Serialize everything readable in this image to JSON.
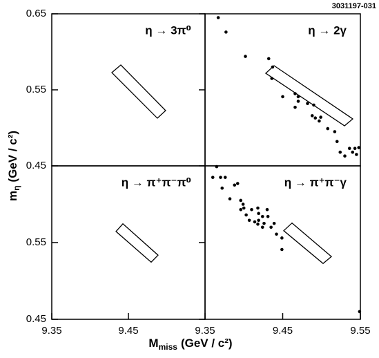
{
  "figure": {
    "id": "3031197-031",
    "xlabel": {
      "base": "M",
      "sub": "miss",
      "unit": "(GeV / c²)"
    },
    "ylabel": {
      "base": "m",
      "sub": "η",
      "unit": "(GeV / c²)"
    }
  },
  "chart_data": [
    {
      "type": "scatter",
      "label": "η → 3π⁰",
      "xlim": [
        9.35,
        9.55
      ],
      "ylim": [
        0.45,
        0.65
      ],
      "yticks": [
        0.65,
        0.55,
        0.45
      ],
      "box": [
        [
          9.4284,
          0.5727
        ],
        [
          9.4401,
          0.5827
        ],
        [
          9.4986,
          0.5227
        ],
        [
          9.4878,
          0.5127
        ]
      ],
      "x": [],
      "values": [],
      "color": "#000000"
    },
    {
      "type": "scatter",
      "label": "η → 2γ",
      "xlim": [
        9.35,
        9.55
      ],
      "ylim": [
        0.45,
        0.65
      ],
      "box": [
        [
          9.4282,
          0.5718
        ],
        [
          9.4389,
          0.5818
        ],
        [
          9.5402,
          0.5118
        ],
        [
          9.5296,
          0.5027
        ]
      ],
      "x": [
        9.367,
        9.377,
        9.402,
        9.432,
        9.437,
        9.436,
        9.45,
        9.466,
        9.47,
        9.466,
        9.47,
        9.482,
        9.49,
        9.488,
        9.492,
        9.497,
        9.499,
        9.508,
        9.517,
        9.52,
        9.524,
        9.53,
        9.536,
        9.54,
        9.543,
        9.545,
        9.548
      ],
      "values": [
        0.645,
        0.626,
        0.594,
        0.591,
        0.58,
        0.565,
        0.541,
        0.545,
        0.541,
        0.527,
        0.535,
        0.532,
        0.53,
        0.516,
        0.513,
        0.509,
        0.514,
        0.499,
        0.495,
        0.482,
        0.468,
        0.463,
        0.473,
        0.468,
        0.473,
        0.465,
        0.474
      ],
      "color": "#000000"
    },
    {
      "type": "scatter",
      "label": "η → π⁺π⁻π⁰",
      "xlim": [
        9.35,
        9.55
      ],
      "ylim": [
        0.45,
        0.65
      ],
      "yticks": [
        0.55,
        0.45
      ],
      "xticks": [
        9.35,
        9.45
      ],
      "box": [
        [
          9.4338,
          0.5645
        ],
        [
          9.4428,
          0.5745
        ],
        [
          9.4887,
          0.5336
        ],
        [
          9.4797,
          0.5245
        ]
      ],
      "x": [],
      "values": [],
      "color": "#000000"
    },
    {
      "type": "scatter",
      "label": "η → π⁺π⁻γ",
      "xlim": [
        9.35,
        9.55
      ],
      "ylim": [
        0.45,
        0.65
      ],
      "xticks": [
        9.35,
        9.45,
        9.55
      ],
      "box": [
        [
          9.4513,
          0.5655
        ],
        [
          9.462,
          0.5755
        ],
        [
          9.5127,
          0.5318
        ],
        [
          9.502,
          0.5227
        ]
      ],
      "x": [
        9.36,
        9.365,
        9.37,
        9.376,
        9.372,
        9.382,
        9.388,
        9.392,
        9.396,
        9.399,
        9.4,
        9.396,
        9.403,
        9.407,
        9.41,
        9.418,
        9.419,
        9.419,
        9.418,
        9.424,
        9.426,
        9.43,
        9.431,
        9.435,
        9.439,
        9.442,
        9.449,
        9.449,
        9.549,
        9.424,
        9.414
      ],
      "values": [
        0.635,
        0.649,
        0.635,
        0.635,
        0.621,
        0.607,
        0.625,
        0.627,
        0.605,
        0.6,
        0.595,
        0.593,
        0.586,
        0.579,
        0.593,
        0.595,
        0.588,
        0.579,
        0.574,
        0.584,
        0.575,
        0.593,
        0.584,
        0.57,
        0.575,
        0.561,
        0.556,
        0.541,
        0.46,
        0.57,
        0.577
      ],
      "color": "#000000"
    }
  ]
}
